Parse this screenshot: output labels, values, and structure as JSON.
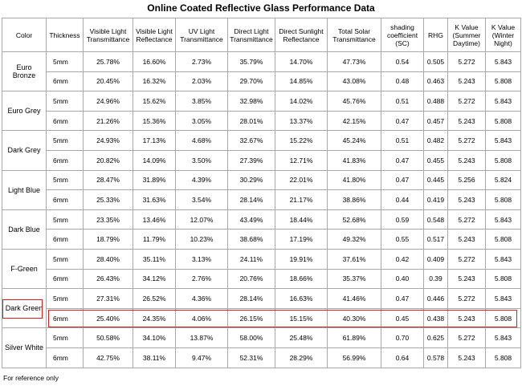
{
  "title": "Online Coated Reflective Glass Performance Data",
  "table": {
    "headers": [
      "Color",
      "Thickness",
      "Visible Light Transmittance",
      "Visible Light Reflectance",
      "UV Light Transmittance",
      "Direct Light Transmittance",
      "Direct Sunlight Reflectance",
      "Total Solar Transmittance",
      "shading coefficient (SC)",
      "RHG",
      "K Value (Summer Daytime)",
      "K Value (Winter Night)"
    ],
    "groups": [
      {
        "color": "Euro Bronze",
        "rows": [
          [
            "5mm",
            "25.78%",
            "16.60%",
            "2.73%",
            "35.79%",
            "14.70%",
            "47.73%",
            "0.54",
            "0.505",
            "5.272",
            "5.843"
          ],
          [
            "6mm",
            "20.45%",
            "16.32%",
            "2.03%",
            "29.70%",
            "14.85%",
            "43.08%",
            "0.48",
            "0.463",
            "5.243",
            "5.808"
          ]
        ]
      },
      {
        "color": "Euro Grey",
        "rows": [
          [
            "5mm",
            "24.96%",
            "15.62%",
            "3.85%",
            "32.98%",
            "14.02%",
            "45.76%",
            "0.51",
            "0.488",
            "5.272",
            "5.843"
          ],
          [
            "6mm",
            "21.26%",
            "15.36%",
            "3.05%",
            "28.01%",
            "13.37%",
            "42.15%",
            "0.47",
            "0.457",
            "5.243",
            "5.808"
          ]
        ]
      },
      {
        "color": "Dark Grey",
        "rows": [
          [
            "5mm",
            "24.93%",
            "17.13%",
            "4.68%",
            "32.67%",
            "15.22%",
            "45.24%",
            "0.51",
            "0.482",
            "5.272",
            "5.843"
          ],
          [
            "6mm",
            "20.82%",
            "14.09%",
            "3.50%",
            "27.39%",
            "12.71%",
            "41.83%",
            "0.47",
            "0.455",
            "5.243",
            "5.808"
          ]
        ]
      },
      {
        "color": "Light Blue",
        "rows": [
          [
            "5mm",
            "28.47%",
            "31.89%",
            "4.39%",
            "30.29%",
            "22.01%",
            "41.80%",
            "0.47",
            "0.445",
            "5.256",
            "5.824"
          ],
          [
            "6mm",
            "25.33%",
            "31.63%",
            "3.54%",
            "28.14%",
            "21.17%",
            "38.86%",
            "0.44",
            "0.419",
            "5.243",
            "5.808"
          ]
        ]
      },
      {
        "color": "Dark Blue",
        "rows": [
          [
            "5mm",
            "23.35%",
            "13.46%",
            "12.07%",
            "43.49%",
            "18.44%",
            "52.68%",
            "0.59",
            "0.548",
            "5.272",
            "5.843"
          ],
          [
            "6mm",
            "18.79%",
            "11.79%",
            "10.23%",
            "38.68%",
            "17.19%",
            "49.32%",
            "0.55",
            "0.517",
            "5.243",
            "5.808"
          ]
        ]
      },
      {
        "color": "F-Green",
        "rows": [
          [
            "5mm",
            "28.40%",
            "35.11%",
            "3.13%",
            "24.11%",
            "19.91%",
            "37.61%",
            "0.42",
            "0.409",
            "5.272",
            "5.843"
          ],
          [
            "6mm",
            "26.43%",
            "34.12%",
            "2.76%",
            "20.76%",
            "18.66%",
            "35.37%",
            "0.40",
            "0.39",
            "5.243",
            "5.808"
          ]
        ]
      },
      {
        "color": "Dark Green",
        "rows": [
          [
            "5mm",
            "27.31%",
            "26.52%",
            "4.36%",
            "28.14%",
            "16.63%",
            "41.46%",
            "0.47",
            "0.446",
            "5.272",
            "5.843"
          ],
          [
            "6mm",
            "25.40%",
            "24.35%",
            "4.06%",
            "26.15%",
            "15.15%",
            "40.30%",
            "0.45",
            "0.438",
            "5.243",
            "5.808"
          ]
        ]
      },
      {
        "color": "Silver White",
        "rows": [
          [
            "5mm",
            "50.58%",
            "34.10%",
            "13.87%",
            "58.00%",
            "25.48%",
            "61.89%",
            "0.70",
            "0.625",
            "5.272",
            "5.843"
          ],
          [
            "6mm",
            "42.75%",
            "38.11%",
            "9.47%",
            "52.31%",
            "28.29%",
            "56.99%",
            "0.64",
            "0.578",
            "5.243",
            "5.808"
          ]
        ]
      }
    ]
  },
  "footnote": "For reference only"
}
